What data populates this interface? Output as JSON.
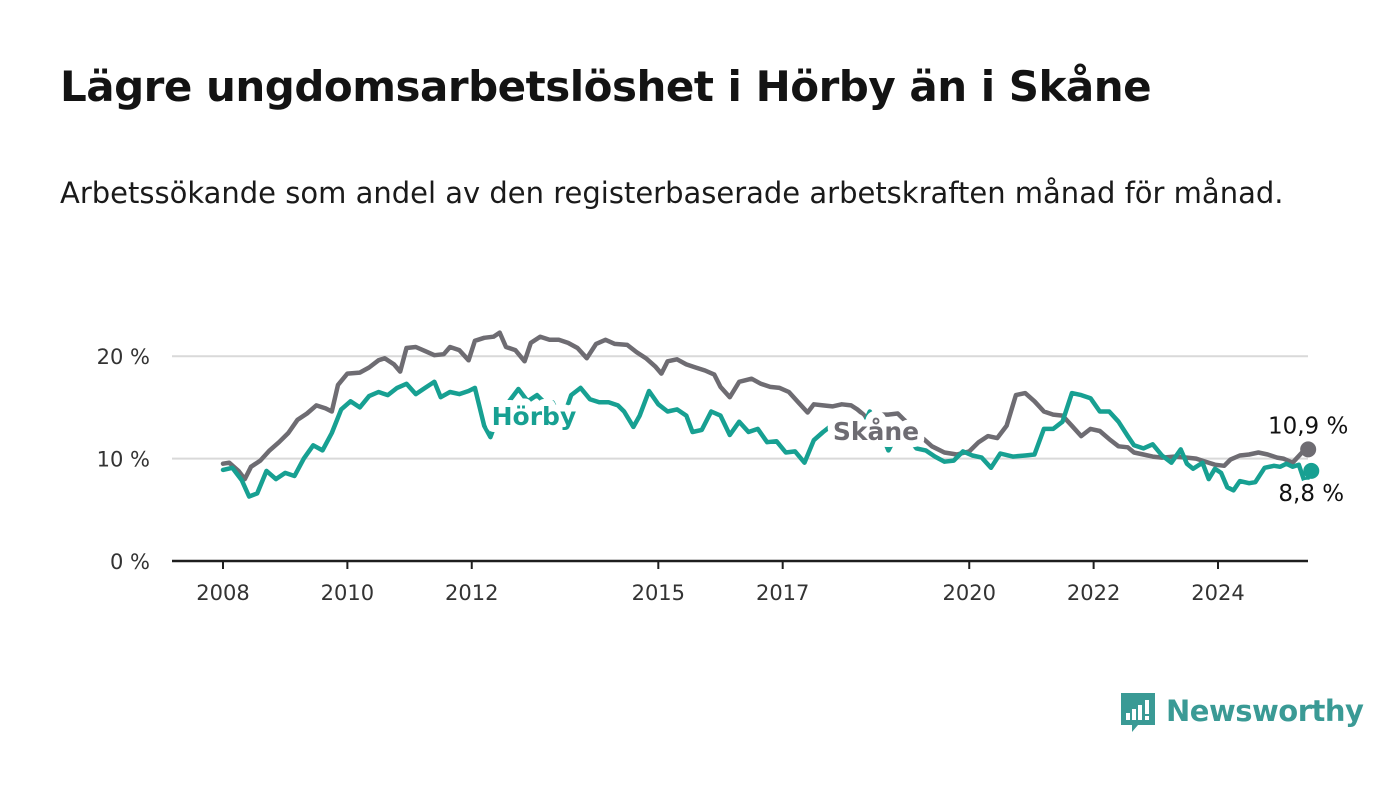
{
  "header": {
    "title": "Lägre ungdomsarbetslöshet i Hörby än i Skåne",
    "subtitle": "Arbetssökande som andel av den registerbaserade arbetskraften månad för månad."
  },
  "brand": {
    "name": "Newsworthy",
    "icon": "bar-chart-speech-bubble-icon",
    "color": "#3a9a95"
  },
  "chart_data": {
    "type": "line",
    "title": "Lägre ungdomsarbetslöshet i Hörby än i Skåne",
    "subtitle": "Arbetssökande som andel av den registerbaserade arbetskraften månad för månad.",
    "xlabel": "",
    "ylabel": "",
    "ylim": [
      0,
      25
    ],
    "xlim": [
      2007.4,
      2025.8
    ],
    "grid": true,
    "x_ticks": [
      {
        "value": 2008,
        "label": "2008"
      },
      {
        "value": 2010,
        "label": "2010"
      },
      {
        "value": 2012,
        "label": "2012"
      },
      {
        "value": 2015,
        "label": "2015"
      },
      {
        "value": 2017,
        "label": "2017"
      },
      {
        "value": 2020,
        "label": "2020"
      },
      {
        "value": 2022,
        "label": "2022"
      },
      {
        "value": 2024,
        "label": "2024"
      }
    ],
    "y_ticks": [
      {
        "value": 0,
        "label": "0 %"
      },
      {
        "value": 10,
        "label": "10 %"
      },
      {
        "value": 20,
        "label": "20 %"
      }
    ],
    "series": [
      {
        "name": "Skåne",
        "color": "#6e6c72",
        "label_at": [
          2018.5,
          11.8
        ],
        "end_label": "10,9 %",
        "end_label_pos": "above",
        "points": [
          [
            2008.0,
            9.5
          ],
          [
            2008.1,
            9.6
          ],
          [
            2008.25,
            8.8
          ],
          [
            2008.35,
            8.0
          ],
          [
            2008.45,
            9.2
          ],
          [
            2008.6,
            9.8
          ],
          [
            2008.75,
            10.8
          ],
          [
            2008.9,
            11.6
          ],
          [
            2009.05,
            12.5
          ],
          [
            2009.2,
            13.8
          ],
          [
            2009.35,
            14.4
          ],
          [
            2009.5,
            15.2
          ],
          [
            2009.65,
            14.9
          ],
          [
            2009.75,
            14.6
          ],
          [
            2009.85,
            17.2
          ],
          [
            2010.0,
            18.3
          ],
          [
            2010.2,
            18.4
          ],
          [
            2010.35,
            18.9
          ],
          [
            2010.5,
            19.6
          ],
          [
            2010.6,
            19.8
          ],
          [
            2010.75,
            19.2
          ],
          [
            2010.85,
            18.5
          ],
          [
            2010.95,
            20.8
          ],
          [
            2011.1,
            20.9
          ],
          [
            2011.25,
            20.5
          ],
          [
            2011.4,
            20.1
          ],
          [
            2011.55,
            20.2
          ],
          [
            2011.65,
            20.9
          ],
          [
            2011.8,
            20.6
          ],
          [
            2011.95,
            19.6
          ],
          [
            2012.05,
            21.5
          ],
          [
            2012.2,
            21.8
          ],
          [
            2012.35,
            21.9
          ],
          [
            2012.45,
            22.3
          ],
          [
            2012.55,
            20.9
          ],
          [
            2012.7,
            20.6
          ],
          [
            2012.85,
            19.5
          ],
          [
            2012.95,
            21.3
          ],
          [
            2013.1,
            21.9
          ],
          [
            2013.25,
            21.6
          ],
          [
            2013.4,
            21.6
          ],
          [
            2013.55,
            21.3
          ],
          [
            2013.7,
            20.8
          ],
          [
            2013.85,
            19.8
          ],
          [
            2014.0,
            21.2
          ],
          [
            2014.15,
            21.6
          ],
          [
            2014.3,
            21.2
          ],
          [
            2014.5,
            21.1
          ],
          [
            2014.65,
            20.4
          ],
          [
            2014.8,
            19.8
          ],
          [
            2014.95,
            19.0
          ],
          [
            2015.05,
            18.3
          ],
          [
            2015.15,
            19.5
          ],
          [
            2015.3,
            19.7
          ],
          [
            2015.45,
            19.2
          ],
          [
            2015.6,
            18.9
          ],
          [
            2015.75,
            18.6
          ],
          [
            2015.9,
            18.2
          ],
          [
            2016.0,
            17.0
          ],
          [
            2016.15,
            16.0
          ],
          [
            2016.3,
            17.5
          ],
          [
            2016.5,
            17.8
          ],
          [
            2016.65,
            17.3
          ],
          [
            2016.8,
            17.0
          ],
          [
            2016.95,
            16.9
          ],
          [
            2017.1,
            16.5
          ],
          [
            2017.25,
            15.5
          ],
          [
            2017.4,
            14.5
          ],
          [
            2017.5,
            15.3
          ],
          [
            2017.65,
            15.2
          ],
          [
            2017.8,
            15.1
          ],
          [
            2017.95,
            15.3
          ],
          [
            2018.1,
            15.2
          ],
          [
            2018.2,
            14.8
          ],
          [
            2018.3,
            14.3
          ],
          [
            2018.4,
            13.5
          ],
          [
            2018.5,
            14.3
          ],
          [
            2018.7,
            14.3
          ],
          [
            2018.85,
            14.4
          ],
          [
            2018.95,
            13.8
          ],
          [
            2019.1,
            13.0
          ],
          [
            2019.25,
            12.0
          ],
          [
            2019.4,
            11.2
          ],
          [
            2019.6,
            10.6
          ],
          [
            2019.8,
            10.4
          ],
          [
            2020.0,
            10.7
          ],
          [
            2020.15,
            11.6
          ],
          [
            2020.3,
            12.2
          ],
          [
            2020.45,
            12.0
          ],
          [
            2020.6,
            13.2
          ],
          [
            2020.75,
            16.2
          ],
          [
            2020.9,
            16.4
          ],
          [
            2021.05,
            15.6
          ],
          [
            2021.2,
            14.6
          ],
          [
            2021.35,
            14.3
          ],
          [
            2021.5,
            14.2
          ],
          [
            2021.65,
            13.2
          ],
          [
            2021.8,
            12.2
          ],
          [
            2021.95,
            12.9
          ],
          [
            2022.1,
            12.7
          ],
          [
            2022.25,
            11.9
          ],
          [
            2022.4,
            11.2
          ],
          [
            2022.55,
            11.1
          ],
          [
            2022.65,
            10.6
          ],
          [
            2022.8,
            10.4
          ],
          [
            2022.95,
            10.2
          ],
          [
            2023.1,
            10.1
          ],
          [
            2023.3,
            10.2
          ],
          [
            2023.5,
            10.1
          ],
          [
            2023.65,
            10.0
          ],
          [
            2023.8,
            9.7
          ],
          [
            2023.95,
            9.4
          ],
          [
            2024.1,
            9.3
          ],
          [
            2024.2,
            9.9
          ],
          [
            2024.35,
            10.3
          ],
          [
            2024.5,
            10.4
          ],
          [
            2024.65,
            10.6
          ],
          [
            2024.8,
            10.4
          ],
          [
            2024.95,
            10.1
          ],
          [
            2025.05,
            10.0
          ],
          [
            2025.2,
            9.6
          ],
          [
            2025.35,
            10.6
          ],
          [
            2025.45,
            10.9
          ]
        ]
      },
      {
        "name": "Hörby",
        "color": "#17a092",
        "label_at": [
          2013.0,
          13.3
        ],
        "end_label": "8,8 %",
        "end_label_pos": "below",
        "points": [
          [
            2008.0,
            8.9
          ],
          [
            2008.15,
            9.1
          ],
          [
            2008.3,
            7.9
          ],
          [
            2008.42,
            6.3
          ],
          [
            2008.55,
            6.6
          ],
          [
            2008.7,
            8.8
          ],
          [
            2008.85,
            8.0
          ],
          [
            2009.0,
            8.6
          ],
          [
            2009.15,
            8.3
          ],
          [
            2009.3,
            10.0
          ],
          [
            2009.45,
            11.3
          ],
          [
            2009.6,
            10.8
          ],
          [
            2009.75,
            12.5
          ],
          [
            2009.9,
            14.8
          ],
          [
            2010.05,
            15.6
          ],
          [
            2010.2,
            15.0
          ],
          [
            2010.35,
            16.1
          ],
          [
            2010.5,
            16.5
          ],
          [
            2010.65,
            16.2
          ],
          [
            2010.8,
            16.9
          ],
          [
            2010.95,
            17.3
          ],
          [
            2011.1,
            16.3
          ],
          [
            2011.25,
            16.9
          ],
          [
            2011.4,
            17.5
          ],
          [
            2011.5,
            16.0
          ],
          [
            2011.65,
            16.5
          ],
          [
            2011.8,
            16.3
          ],
          [
            2011.95,
            16.6
          ],
          [
            2012.05,
            16.9
          ],
          [
            2012.2,
            13.2
          ],
          [
            2012.3,
            12.1
          ],
          [
            2012.45,
            14.6
          ],
          [
            2012.6,
            15.6
          ],
          [
            2012.75,
            16.8
          ],
          [
            2012.9,
            15.6
          ],
          [
            2013.05,
            16.2
          ],
          [
            2013.15,
            15.6
          ],
          [
            2013.3,
            15.5
          ],
          [
            2013.45,
            13.6
          ],
          [
            2013.6,
            16.2
          ],
          [
            2013.75,
            16.9
          ],
          [
            2013.9,
            15.8
          ],
          [
            2014.05,
            15.5
          ],
          [
            2014.2,
            15.5
          ],
          [
            2014.35,
            15.2
          ],
          [
            2014.45,
            14.6
          ],
          [
            2014.6,
            13.1
          ],
          [
            2014.7,
            14.2
          ],
          [
            2014.85,
            16.6
          ],
          [
            2015.0,
            15.3
          ],
          [
            2015.15,
            14.6
          ],
          [
            2015.3,
            14.8
          ],
          [
            2015.45,
            14.2
          ],
          [
            2015.55,
            12.6
          ],
          [
            2015.7,
            12.8
          ],
          [
            2015.85,
            14.6
          ],
          [
            2016.0,
            14.2
          ],
          [
            2016.15,
            12.3
          ],
          [
            2016.3,
            13.6
          ],
          [
            2016.45,
            12.6
          ],
          [
            2016.6,
            12.9
          ],
          [
            2016.75,
            11.6
          ],
          [
            2016.9,
            11.7
          ],
          [
            2017.05,
            10.6
          ],
          [
            2017.2,
            10.7
          ],
          [
            2017.35,
            9.6
          ],
          [
            2017.5,
            11.8
          ],
          [
            2017.65,
            12.6
          ],
          [
            2017.8,
            13.3
          ],
          [
            2017.95,
            13.0
          ],
          [
            2018.1,
            13.1
          ],
          [
            2018.25,
            12.6
          ],
          [
            2018.4,
            14.6
          ],
          [
            2018.55,
            13.0
          ],
          [
            2018.7,
            10.8
          ],
          [
            2018.85,
            12.5
          ],
          [
            2019.0,
            12.2
          ],
          [
            2019.15,
            11.0
          ],
          [
            2019.3,
            10.8
          ],
          [
            2019.45,
            10.2
          ],
          [
            2019.6,
            9.7
          ],
          [
            2019.75,
            9.8
          ],
          [
            2019.9,
            10.7
          ],
          [
            2020.05,
            10.3
          ],
          [
            2020.2,
            10.1
          ],
          [
            2020.35,
            9.1
          ],
          [
            2020.5,
            10.5
          ],
          [
            2020.7,
            10.2
          ],
          [
            2020.9,
            10.3
          ],
          [
            2021.05,
            10.4
          ],
          [
            2021.2,
            12.9
          ],
          [
            2021.35,
            12.9
          ],
          [
            2021.5,
            13.6
          ],
          [
            2021.65,
            16.4
          ],
          [
            2021.8,
            16.2
          ],
          [
            2021.95,
            15.9
          ],
          [
            2022.1,
            14.6
          ],
          [
            2022.25,
            14.6
          ],
          [
            2022.4,
            13.6
          ],
          [
            2022.55,
            12.2
          ],
          [
            2022.65,
            11.3
          ],
          [
            2022.8,
            11.0
          ],
          [
            2022.95,
            11.4
          ],
          [
            2023.1,
            10.3
          ],
          [
            2023.25,
            9.6
          ],
          [
            2023.4,
            10.9
          ],
          [
            2023.5,
            9.5
          ],
          [
            2023.6,
            9.0
          ],
          [
            2023.75,
            9.6
          ],
          [
            2023.85,
            8.0
          ],
          [
            2023.95,
            9.0
          ],
          [
            2024.05,
            8.6
          ],
          [
            2024.15,
            7.2
          ],
          [
            2024.25,
            6.9
          ],
          [
            2024.35,
            7.8
          ],
          [
            2024.5,
            7.6
          ],
          [
            2024.6,
            7.7
          ],
          [
            2024.75,
            9.1
          ],
          [
            2024.9,
            9.3
          ],
          [
            2025.0,
            9.2
          ],
          [
            2025.1,
            9.5
          ],
          [
            2025.2,
            9.2
          ],
          [
            2025.3,
            9.4
          ],
          [
            2025.4,
            7.6
          ],
          [
            2025.5,
            8.8
          ]
        ]
      }
    ]
  }
}
